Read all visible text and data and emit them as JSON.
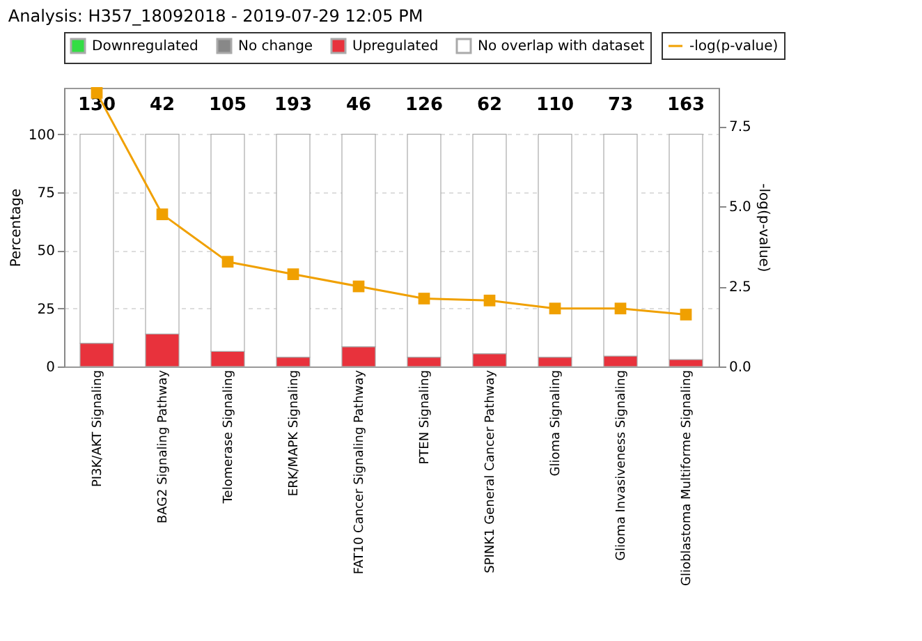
{
  "chart_data": {
    "type": "bar",
    "title": "Analysis: H357_18092018 - 2019-07-29 12:05 PM",
    "categories": [
      "PI3K/AKT Signaling",
      "BAG2 Signaling Pathway",
      "Telomerase Signaling",
      "ERK/MAPK Signaling",
      "FAT10 Cancer Signaling Pathway",
      "PTEN Signaling",
      "SPINK1 General Cancer Pathway",
      "Glioma Signaling",
      "Glioma Invasiveness Signaling",
      "Glioblastoma Multiforme Signaling"
    ],
    "stacked": true,
    "ylabel": "Percentage",
    "y2label": "-log(p-value)",
    "ylim": [
      0,
      120
    ],
    "yticks": [
      0,
      25,
      50,
      75,
      100
    ],
    "y2lim": [
      0,
      8.7
    ],
    "y2ticks": [
      {
        "value": 0,
        "label": "0.0"
      },
      2.5,
      {
        "value": 5,
        "label": "5.0"
      },
      7.5
    ],
    "grid": "y",
    "legend": "top",
    "marker": "square",
    "line_style": "solid",
    "annotations": [
      "130",
      "42",
      "105",
      "193",
      "46",
      "126",
      "62",
      "110",
      "73",
      "163"
    ],
    "series": [
      {
        "name": "Downregulated",
        "color": "#33dd44",
        "values": [
          0,
          0,
          0,
          0,
          0,
          0,
          0,
          0,
          0,
          0
        ]
      },
      {
        "name": "No change",
        "color": "#888888",
        "values": [
          0,
          0,
          0,
          0,
          0,
          0,
          0,
          0,
          0,
          0
        ]
      },
      {
        "name": "Upregulated",
        "color": "#e8323c",
        "values": [
          10,
          14,
          6.5,
          4,
          8.5,
          4,
          5.5,
          4,
          4.5,
          3
        ]
      },
      {
        "name": "No overlap with dataset",
        "color": "#ffffff",
        "values": [
          90,
          86,
          93.5,
          96,
          91.5,
          96,
          94.5,
          96,
          95.5,
          97
        ]
      },
      {
        "name": "-log(p-value)",
        "type": "line",
        "axis": "y2",
        "color": "#f0a000",
        "values": [
          8.54,
          4.75,
          3.27,
          2.88,
          2.5,
          2.12,
          2.06,
          1.81,
          1.81,
          1.62
        ]
      }
    ]
  }
}
